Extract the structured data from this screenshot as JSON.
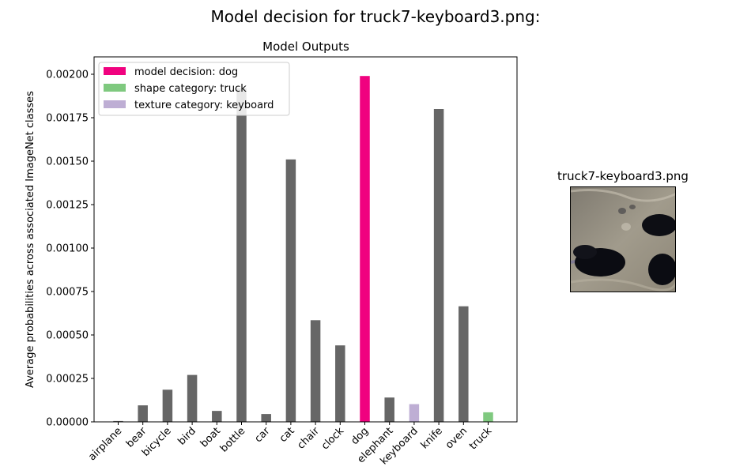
{
  "figure_title": "Model decision for truck7-keyboard3.png:",
  "chart_data": {
    "type": "bar",
    "title": "Model Outputs",
    "xlabel": "",
    "ylabel": "Average probabilities across associated ImageNet classes",
    "categories": [
      "airplane",
      "bear",
      "bicycle",
      "bird",
      "boat",
      "bottle",
      "car",
      "cat",
      "chair",
      "clock",
      "dog",
      "elephant",
      "keyboard",
      "knife",
      "oven",
      "truck"
    ],
    "values": [
      5e-06,
      9.5e-05,
      0.000185,
      0.00027,
      6.3e-05,
      0.00192,
      4.5e-05,
      0.00151,
      0.000585,
      0.00044,
      0.00199,
      0.00014,
      0.000102,
      0.0018,
      0.000665,
      5.5e-05
    ],
    "bar_colors": [
      "#666666",
      "#666666",
      "#666666",
      "#666666",
      "#666666",
      "#666666",
      "#666666",
      "#666666",
      "#666666",
      "#666666",
      "#f0027f",
      "#666666",
      "#beaed4",
      "#666666",
      "#666666",
      "#7fc97f"
    ],
    "ylim": [
      0,
      0.0021
    ],
    "yticks": [
      0,
      0.00025,
      0.0005,
      0.00075,
      0.001,
      0.00125,
      0.0015,
      0.00175,
      0.002
    ],
    "ytick_labels": [
      "0.00000",
      "0.00025",
      "0.00050",
      "0.00075",
      "0.00100",
      "0.00125",
      "0.00150",
      "0.00175",
      "0.00200"
    ],
    "grid": false,
    "legend_position": "top-left",
    "legend": [
      {
        "label": "model decision: dog",
        "color": "#f0027f"
      },
      {
        "label": "shape category: truck",
        "color": "#7fc97f"
      },
      {
        "label": "texture category: keyboard",
        "color": "#beaed4"
      }
    ]
  },
  "image_panel": {
    "title": "truck7-keyboard3.png"
  }
}
